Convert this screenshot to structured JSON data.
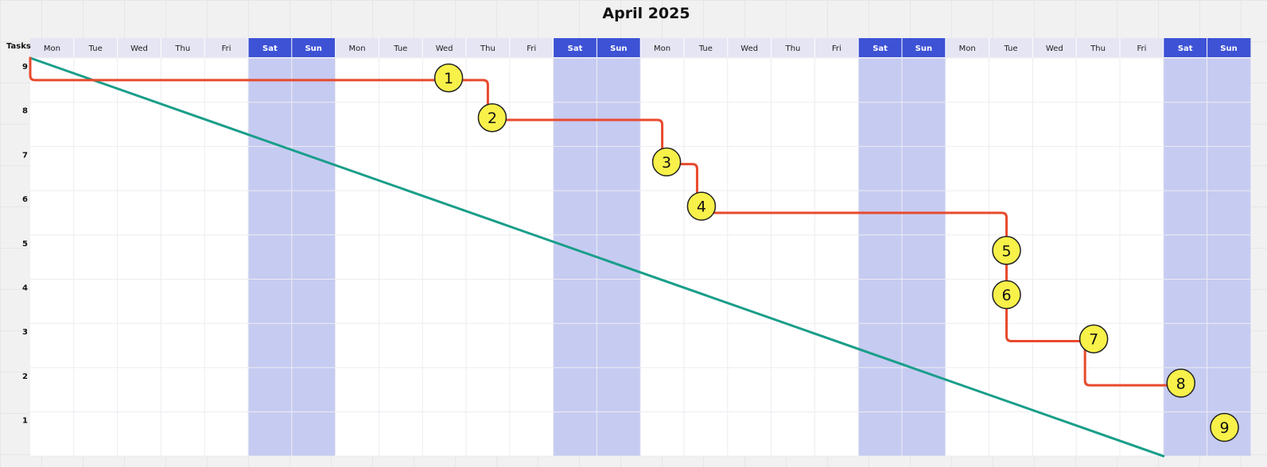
{
  "chart_data": {
    "type": "line",
    "title": "April 2025",
    "ylabel": "Tasks",
    "xlabel": "",
    "ylim": [
      0,
      9
    ],
    "y_ticks": [
      "1",
      "2",
      "3",
      "4",
      "5",
      "6",
      "7",
      "8",
      "9"
    ],
    "days": [
      "Mon",
      "Tue",
      "Wed",
      "Thu",
      "Fri",
      "Sat",
      "Sun",
      "Mon",
      "Tue",
      "Wed",
      "Thu",
      "Fri",
      "Sat",
      "Sun",
      "Mon",
      "Tue",
      "Wed",
      "Thu",
      "Fri",
      "Sat",
      "Sun",
      "Mon",
      "Tue",
      "Wed",
      "Thu",
      "Fri",
      "Sat",
      "Sun"
    ],
    "weekend_days": [
      "Sat",
      "Sun"
    ],
    "series": [
      {
        "type": "line",
        "color": "#1a9e8a",
        "x": [
          0,
          26
        ],
        "y": [
          9,
          0
        ]
      },
      {
        "type": "step",
        "color": "#e84a2e",
        "x": [
          0,
          0,
          10.5,
          10.5,
          14.5,
          14.5,
          15.3,
          15.3,
          22.4,
          22.4,
          24.2,
          24.2,
          26.5
        ],
        "y": [
          9,
          8.5,
          8.5,
          7.6,
          7.6,
          6.6,
          6.6,
          5.5,
          5.5,
          2.6,
          2.6,
          1.6,
          1.6
        ]
      }
    ],
    "tasks": [
      {
        "label": "1",
        "x": 9.6,
        "y": 8.55
      },
      {
        "label": "2",
        "x": 10.6,
        "y": 7.65
      },
      {
        "label": "3",
        "x": 14.6,
        "y": 6.65
      },
      {
        "label": "4",
        "x": 15.4,
        "y": 5.65
      },
      {
        "label": "5",
        "x": 22.4,
        "y": 4.65
      },
      {
        "label": "6",
        "x": 22.4,
        "y": 3.65
      },
      {
        "label": "7",
        "x": 24.4,
        "y": 2.65
      },
      {
        "label": "8",
        "x": 26.4,
        "y": 1.65
      },
      {
        "label": "9",
        "x": 27.4,
        "y": 0.65
      }
    ],
    "colors": {
      "header_weekday": "#e5e5f4",
      "header_weekend": "#3d52d5",
      "weekend_column": "#c6cbf1",
      "marker_fill": "#f8f14a",
      "marker_stroke": "#222222"
    }
  }
}
